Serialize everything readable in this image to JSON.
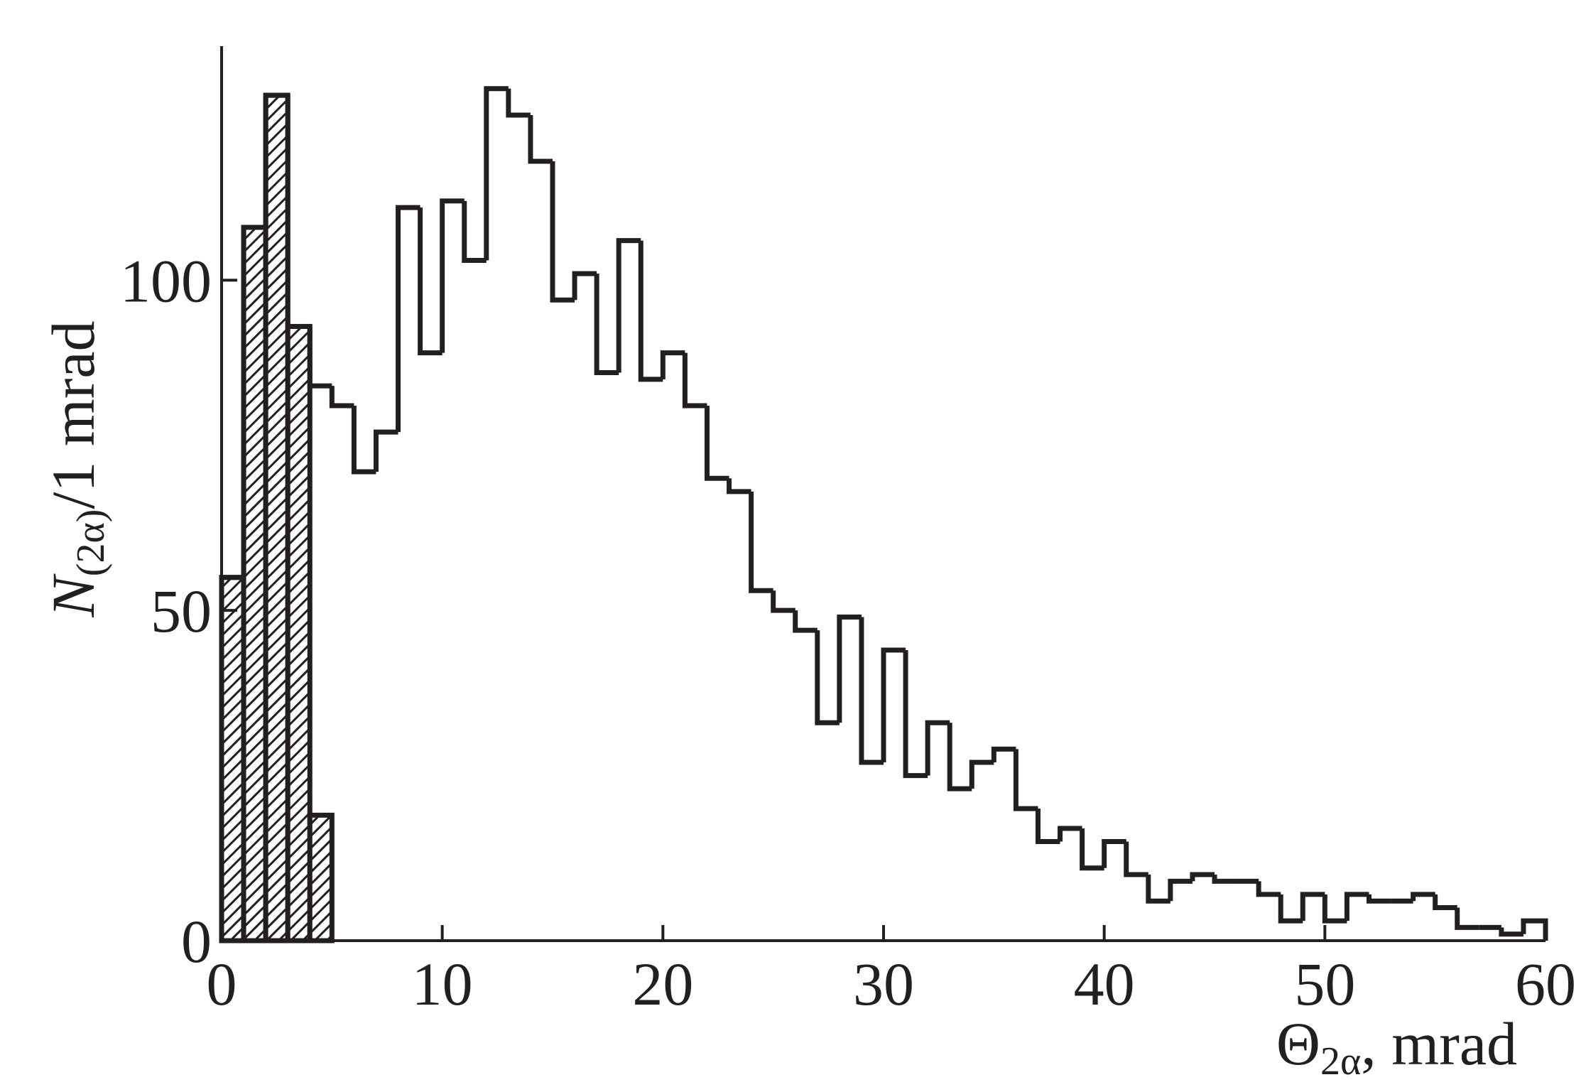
{
  "chart_data": {
    "type": "histogram",
    "x_label": {
      "symbol": "Θ",
      "subscript": "2α",
      "text": ", mrad"
    },
    "y_label": {
      "symbol": "N",
      "subscript": "(2α)",
      "text": "/1 mrad"
    },
    "bins": [
      0,
      1,
      2,
      3,
      4,
      5,
      6,
      7,
      8,
      9,
      10,
      11,
      12,
      13,
      14,
      15,
      16,
      17,
      18,
      19,
      20,
      21,
      22,
      23,
      24,
      25,
      26,
      27,
      28,
      29,
      30,
      31,
      32,
      33,
      34,
      35,
      36,
      37,
      38,
      39,
      40,
      41,
      42,
      43,
      44,
      45,
      46,
      47,
      48,
      49,
      50,
      51,
      52,
      53,
      54,
      55,
      56,
      57,
      58,
      59,
      60
    ],
    "series": [
      {
        "color": "#231f20",
        "fill": "none",
        "values": [
          55,
          108,
          128,
          93,
          84,
          81,
          71,
          77,
          111,
          89,
          112,
          103,
          129,
          125,
          118,
          97,
          101,
          86,
          106,
          85,
          89,
          81,
          70,
          68,
          53,
          50,
          47,
          33,
          49,
          27,
          44,
          25,
          33,
          23,
          27,
          29,
          20,
          15,
          17,
          11,
          15,
          10,
          6,
          9,
          10,
          9,
          9,
          7,
          3,
          7,
          3,
          7,
          6,
          6,
          7,
          5,
          2,
          2,
          1,
          3
        ]
      },
      {
        "color": "#231f20",
        "fill": "hatch",
        "bins": [
          0,
          1,
          2,
          3,
          4,
          5
        ],
        "values": [
          55,
          108,
          128,
          93,
          19
        ]
      }
    ],
    "xlim": [
      0,
      60
    ],
    "ylim": [
      0,
      135
    ],
    "xticks": [
      0,
      10,
      20,
      30,
      40,
      50,
      60
    ],
    "yticks": [
      0,
      50,
      100
    ]
  }
}
